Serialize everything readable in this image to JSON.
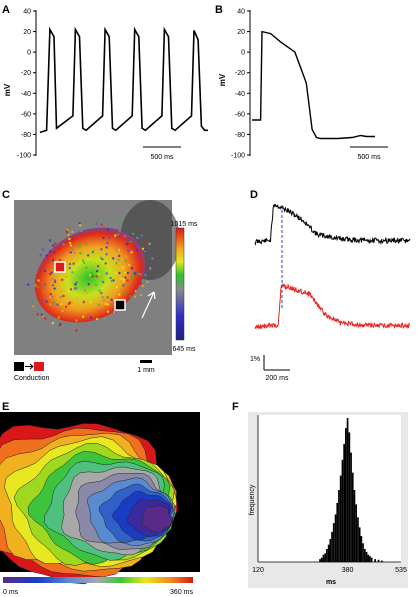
{
  "panels": {
    "a": "A",
    "b": "B",
    "c": "C",
    "d": "D",
    "e": "E",
    "f": "F"
  },
  "chart_data": [
    {
      "panel": "A",
      "type": "line",
      "ylabel": "mV",
      "yticks": [
        "40",
        "20",
        "0",
        "-20",
        "-40",
        "-60",
        "-80",
        "-100"
      ],
      "ylim": [
        -100,
        40
      ],
      "x": [
        0,
        80,
        120,
        170,
        200,
        400,
        430,
        480,
        520,
        560,
        760,
        790,
        840,
        880,
        920,
        1120,
        1150,
        1200,
        1240,
        1280,
        1480,
        1510,
        1560,
        1600,
        1640,
        1840,
        1870,
        1920,
        1960,
        2000,
        2040
      ],
      "y": [
        -78,
        -76,
        22,
        15,
        -74,
        -62,
        22,
        15,
        -74,
        -76,
        -62,
        22,
        15,
        -74,
        -76,
        -62,
        22,
        15,
        -74,
        -76,
        -62,
        22,
        15,
        -74,
        -76,
        -62,
        21,
        12,
        -72,
        -76,
        -76
      ],
      "scalebar": "500 ms"
    },
    {
      "panel": "B",
      "type": "line",
      "ylabel": "mV",
      "yticks": [
        "40",
        "20",
        "0",
        "-20",
        "-40",
        "-60",
        "-80",
        "-100"
      ],
      "ylim": [
        -100,
        40
      ],
      "x": [
        0,
        60,
        70,
        130,
        200,
        300,
        380,
        420,
        450,
        480,
        520,
        600,
        700,
        760,
        800,
        860
      ],
      "y": [
        -66,
        -66,
        20,
        18,
        10,
        0,
        -30,
        -75,
        -83,
        -84,
        -84,
        -84,
        -83,
        -81,
        -82,
        -82
      ],
      "scalebar": "500 ms"
    },
    {
      "panel": "C",
      "type": "heatmap",
      "colorbar_max": "1015 ms",
      "colorbar_min": "645 ms",
      "colorbar_range": [
        645,
        1015
      ],
      "scale_label": "1 mm",
      "legend_label": "Conduction"
    },
    {
      "panel": "D",
      "type": "line",
      "series": [
        {
          "color": "#000000",
          "x": [
            0,
            20,
            24,
            40,
            60,
            80,
            110,
            140,
            200
          ],
          "y": [
            0.0,
            0.05,
            1.0,
            0.85,
            0.6,
            0.2,
            0.08,
            0.04,
            0.03
          ]
        },
        {
          "color": "#e8251f",
          "x": [
            0,
            30,
            34,
            50,
            70,
            90,
            110,
            140,
            200
          ],
          "y": [
            0.0,
            0.05,
            1.0,
            0.9,
            0.8,
            0.3,
            0.1,
            0.05,
            0.03
          ]
        }
      ],
      "scale_y": "1%",
      "scale_x": "200 ms"
    },
    {
      "panel": "E",
      "type": "heatmap",
      "colorbar_min": "0 ms",
      "colorbar_max": "360 ms",
      "colorbar_range": [
        0,
        360
      ]
    },
    {
      "panel": "F",
      "type": "bar",
      "ylabel": "frequency",
      "xlabel": "ms",
      "xticks": [
        "120",
        "380",
        "535"
      ],
      "xlim": [
        120,
        535
      ],
      "bins": [
        {
          "x": 300,
          "v": 0.02
        },
        {
          "x": 305,
          "v": 0.03
        },
        {
          "x": 310,
          "v": 0.05
        },
        {
          "x": 315,
          "v": 0.06
        },
        {
          "x": 320,
          "v": 0.09
        },
        {
          "x": 325,
          "v": 0.12
        },
        {
          "x": 330,
          "v": 0.16
        },
        {
          "x": 335,
          "v": 0.21
        },
        {
          "x": 340,
          "v": 0.27
        },
        {
          "x": 345,
          "v": 0.33
        },
        {
          "x": 350,
          "v": 0.41
        },
        {
          "x": 355,
          "v": 0.5
        },
        {
          "x": 360,
          "v": 0.6
        },
        {
          "x": 365,
          "v": 0.71
        },
        {
          "x": 370,
          "v": 0.82
        },
        {
          "x": 375,
          "v": 0.93
        },
        {
          "x": 380,
          "v": 1.0
        },
        {
          "x": 385,
          "v": 0.9
        },
        {
          "x": 390,
          "v": 0.76
        },
        {
          "x": 395,
          "v": 0.62
        },
        {
          "x": 400,
          "v": 0.5
        },
        {
          "x": 405,
          "v": 0.4
        },
        {
          "x": 410,
          "v": 0.31
        },
        {
          "x": 415,
          "v": 0.24
        },
        {
          "x": 420,
          "v": 0.18
        },
        {
          "x": 425,
          "v": 0.13
        },
        {
          "x": 430,
          "v": 0.09
        },
        {
          "x": 435,
          "v": 0.07
        },
        {
          "x": 440,
          "v": 0.05
        },
        {
          "x": 445,
          "v": 0.04
        },
        {
          "x": 450,
          "v": 0.03
        },
        {
          "x": 460,
          "v": 0.02
        },
        {
          "x": 470,
          "v": 0.015
        },
        {
          "x": 480,
          "v": 0.01
        }
      ]
    }
  ]
}
